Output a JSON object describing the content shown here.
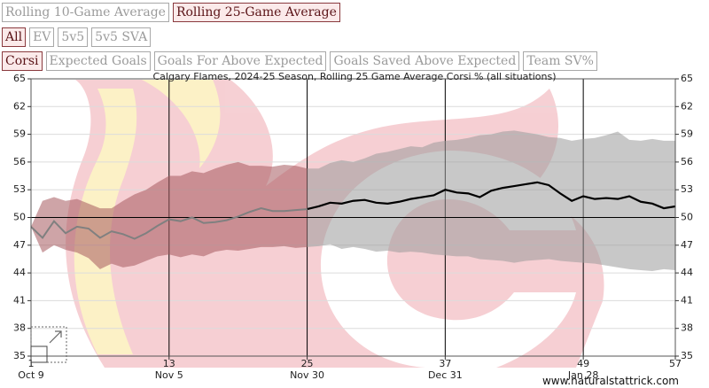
{
  "controls": {
    "window_buttons": [
      {
        "label": "Rolling 10-Game Average",
        "active": false
      },
      {
        "label": "Rolling 25-Game Average",
        "active": true
      }
    ],
    "strength_buttons": [
      {
        "label": "All",
        "active": true
      },
      {
        "label": "EV",
        "active": false
      },
      {
        "label": "5v5",
        "active": false
      },
      {
        "label": "5v5 SVA",
        "active": false
      }
    ],
    "metric_buttons": [
      {
        "label": "Corsi",
        "active": true
      },
      {
        "label": "Expected Goals",
        "active": false
      },
      {
        "label": "Goals For Above Expected",
        "active": false
      },
      {
        "label": "Goals Saved Above Expected",
        "active": false
      },
      {
        "label": "Team SV%",
        "active": false
      }
    ]
  },
  "credit": "www.naturalstattrick.com",
  "chart_data": {
    "type": "line",
    "title": "Calgary Flames, 2024-25 Season, Rolling 25 Game Average Corsi % (all situations)",
    "xlabel": "",
    "ylabel": "",
    "xlim": [
      1,
      57
    ],
    "ylim": [
      35,
      65
    ],
    "y_ticks": [
      35,
      38,
      41,
      44,
      47,
      50,
      53,
      56,
      59,
      62,
      65
    ],
    "x_ticks": [
      {
        "game": 1,
        "label": "1",
        "date": "Oct 9"
      },
      {
        "game": 13,
        "label": "13",
        "date": "Nov 5"
      },
      {
        "game": 25,
        "label": "25",
        "date": "Nov 30"
      },
      {
        "game": 37,
        "label": "37",
        "date": "Dec 31"
      },
      {
        "game": 49,
        "label": "49",
        "date": "Jan 28"
      },
      {
        "game": 57,
        "label": "57",
        "date": ""
      }
    ],
    "reference_line": 50,
    "grid": true,
    "colors": {
      "line_early": "#808080",
      "line_main": "#000000",
      "band_early": "#a5595f",
      "band_main": "#9a9a9a"
    },
    "series": [
      {
        "x": [
          1,
          2,
          3,
          4,
          5,
          6,
          7,
          8,
          9,
          10,
          11,
          12,
          13,
          14,
          15,
          16,
          17,
          18,
          19,
          20,
          21,
          22,
          23,
          24,
          25,
          26,
          27,
          28,
          29,
          30,
          31,
          32,
          33,
          34,
          35,
          36,
          37,
          38,
          39,
          40,
          41,
          42,
          43,
          44,
          45,
          46,
          47,
          48,
          49,
          50,
          51,
          52,
          53,
          54,
          55,
          56,
          57
        ],
        "values": [
          49.0,
          47.8,
          49.6,
          48.3,
          49.0,
          48.8,
          47.8,
          48.5,
          48.2,
          47.7,
          48.3,
          49.1,
          49.8,
          49.6,
          50.0,
          49.4,
          49.5,
          49.7,
          50.1,
          50.6,
          51.0,
          50.7,
          50.7,
          50.8,
          50.9,
          51.2,
          51.6,
          51.5,
          51.8,
          51.9,
          51.6,
          51.5,
          51.7,
          52.0,
          52.2,
          52.4,
          53.0,
          52.7,
          52.6,
          52.2,
          52.9,
          53.2,
          53.4,
          53.6,
          53.8,
          53.5,
          52.6,
          51.8,
          52.3,
          52.0,
          52.1,
          52.0,
          52.3,
          51.7,
          51.5,
          51.0,
          51.2
        ],
        "band_upper": [
          49.0,
          51.8,
          52.2,
          51.8,
          52.0,
          51.5,
          51.0,
          51.0,
          51.8,
          52.5,
          53.0,
          53.8,
          54.5,
          54.5,
          55.0,
          54.8,
          55.3,
          55.7,
          56.0,
          55.6,
          55.6,
          55.5,
          55.7,
          55.6,
          55.3,
          55.3,
          55.9,
          56.2,
          56.0,
          56.4,
          56.9,
          57.1,
          57.4,
          57.7,
          57.6,
          58.1,
          58.3,
          58.4,
          58.6,
          58.9,
          59.0,
          59.3,
          59.4,
          59.2,
          59.0,
          58.7,
          58.6,
          58.3,
          58.5,
          58.6,
          58.9,
          59.3,
          58.4,
          58.3,
          58.5,
          58.3,
          58.3
        ],
        "band_lower": [
          49.0,
          46.2,
          47.0,
          46.5,
          46.2,
          45.6,
          44.4,
          45.0,
          44.6,
          44.8,
          45.3,
          45.8,
          46.0,
          45.7,
          46.0,
          45.8,
          46.3,
          46.5,
          46.4,
          46.6,
          46.8,
          46.8,
          46.9,
          46.7,
          46.8,
          46.9,
          47.1,
          46.6,
          46.8,
          46.6,
          46.3,
          46.4,
          46.2,
          46.3,
          46.2,
          46.0,
          45.9,
          45.8,
          45.8,
          45.5,
          45.4,
          45.3,
          45.1,
          45.3,
          45.4,
          45.5,
          45.3,
          45.2,
          45.1,
          45.0,
          44.8,
          44.6,
          44.4,
          44.3,
          44.2,
          44.4,
          44.3
        ]
      }
    ]
  }
}
